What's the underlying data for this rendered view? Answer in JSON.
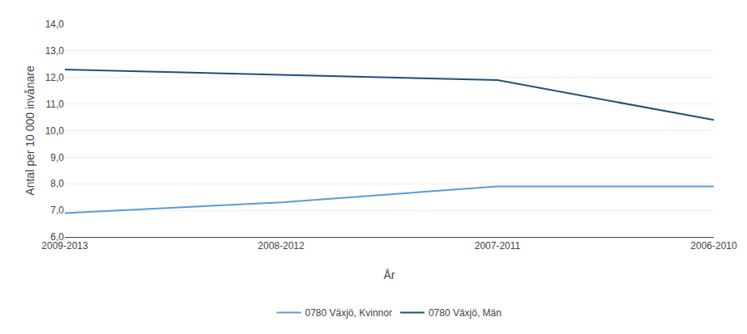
{
  "chart_data": {
    "type": "line",
    "categories": [
      "2009-2013",
      "2008-2012",
      "2007-2011",
      "2006-2010"
    ],
    "series": [
      {
        "name": "0780 Växjö, Kvinnor",
        "color": "#5B9BD5",
        "values": [
          6.9,
          7.3,
          7.9,
          7.9
        ]
      },
      {
        "name": "0780 Växjö, Män",
        "color": "#1F4E79",
        "values": [
          12.3,
          12.1,
          11.9,
          10.4
        ]
      }
    ],
    "ylabel": "Antal per 10 000 invånare",
    "xlabel": "År",
    "ylim": [
      6.0,
      14.0
    ],
    "yticks": [
      {
        "value": 6.0,
        "label": "6,0"
      },
      {
        "value": 7.0,
        "label": "7,0"
      },
      {
        "value": 8.0,
        "label": "8,0"
      },
      {
        "value": 9.0,
        "label": "9,0"
      },
      {
        "value": 10.0,
        "label": "10,0"
      },
      {
        "value": 11.0,
        "label": "11,0"
      },
      {
        "value": 12.0,
        "label": "12,0"
      },
      {
        "value": 13.0,
        "label": "13,0"
      },
      {
        "value": 14.0,
        "label": "14,0"
      }
    ],
    "grid": true,
    "legend": "bottom"
  }
}
